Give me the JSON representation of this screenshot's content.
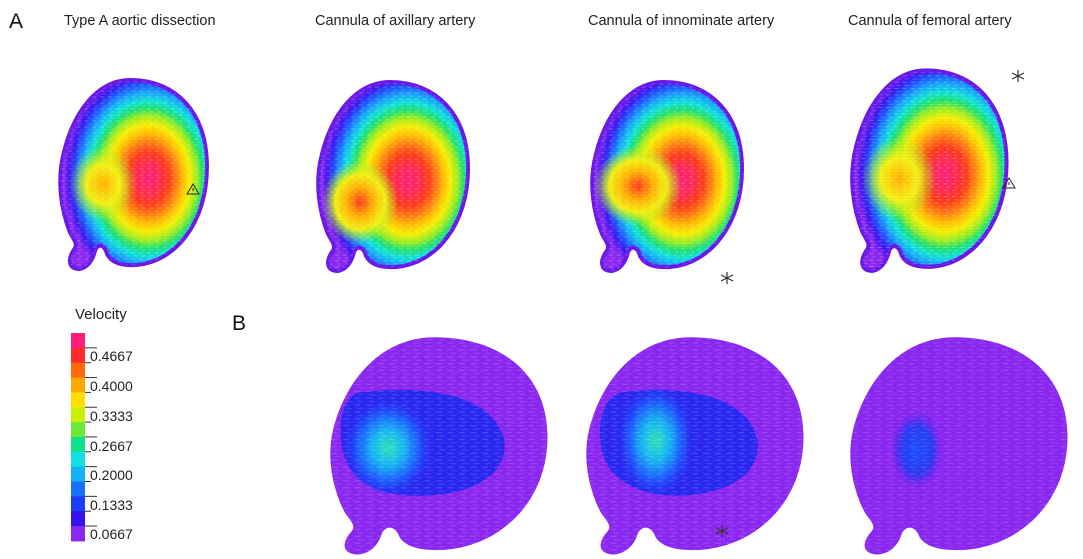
{
  "panel_a": {
    "letter": "A",
    "titles": [
      "Type A aortic dissection",
      "Cannula of axillary artery",
      "Cannula of innominate artery",
      "Cannula of femoral artery"
    ]
  },
  "panel_b": {
    "letter": "B"
  },
  "legend": {
    "title": "Velocity",
    "labels": [
      "0.4667",
      "0.4000",
      "0.3333",
      "0.2667",
      "0.2000",
      "0.1333",
      "0.0667"
    ],
    "colors": [
      "#ff1e78",
      "#ff2a2a",
      "#ff6a10",
      "#ffa800",
      "#ffe000",
      "#c8f000",
      "#6ce838",
      "#10e088",
      "#10e0e0",
      "#14b0f8",
      "#1870ff",
      "#1e3cf8",
      "#3414ee",
      "#8a28f0"
    ]
  },
  "markers": {
    "triangle": "warning-triangle-icon",
    "asterisk": "asterisk-icon"
  }
}
